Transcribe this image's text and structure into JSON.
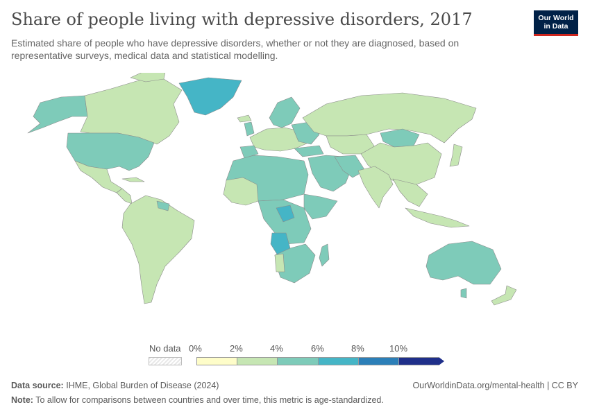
{
  "header": {
    "title": "Share of people living with depressive disorders, 2017",
    "subtitle": "Estimated share of people who have depressive disorders, whether or not they are diagnosed, based on representative surveys, medical data and statistical modelling."
  },
  "logo": {
    "line1": "Our World",
    "line2": "in Data"
  },
  "legend": {
    "no_data_label": "No data",
    "ticks": [
      "0%",
      "2%",
      "4%",
      "6%",
      "8%",
      "10%"
    ],
    "colors": [
      "#fefdc9",
      "#c6e6b3",
      "#7ecbb9",
      "#45b5c6",
      "#2c7fb8",
      "#1f2f8a"
    ]
  },
  "footer": {
    "source_label": "Data source:",
    "source_text": "IHME, Global Burden of Disease (2024)",
    "note_label": "Note:",
    "note_text": "To allow for comparisons between countries and over time, this metric is age-standardized.",
    "url": "OurWorldinData.org/mental-health | CC BY"
  }
}
